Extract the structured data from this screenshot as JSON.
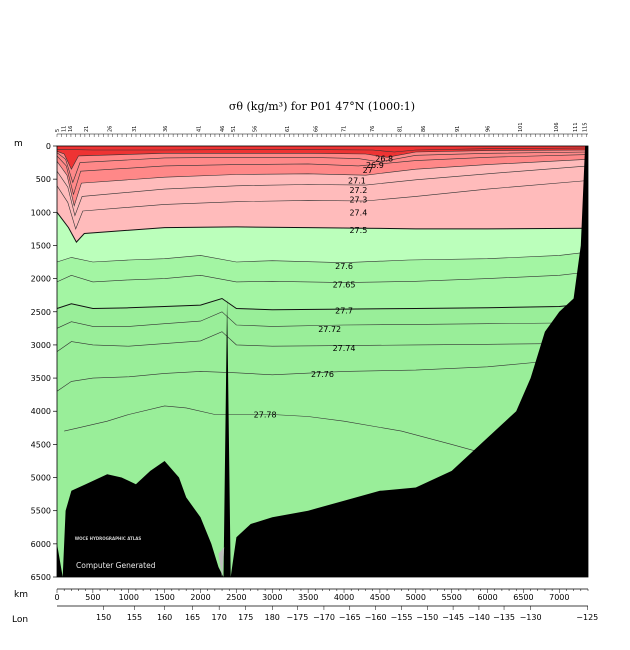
{
  "chart_data": {
    "type": "contour",
    "title": "σθ (kg/m³) for P01 47°N (1000:1)",
    "xlabel": "km",
    "ylabel": "m",
    "lon_label": "Lon",
    "xlim": [
      0,
      7400
    ],
    "ylim": [
      0,
      6500
    ],
    "x_ticks": [
      0,
      500,
      1000,
      1500,
      2000,
      2500,
      3000,
      3500,
      4000,
      4500,
      5000,
      5500,
      6000,
      6500,
      7000
    ],
    "y_ticks": [
      0,
      500,
      1000,
      1500,
      2000,
      2500,
      3000,
      3500,
      4000,
      4500,
      5000,
      5500,
      6000,
      6500
    ],
    "lon_ticks": [
      {
        "label": "150",
        "km": 650
      },
      {
        "label": "155",
        "km": 1080
      },
      {
        "label": "160",
        "km": 1500
      },
      {
        "label": "165",
        "km": 1890
      },
      {
        "label": "170",
        "km": 2260
      },
      {
        "label": "175",
        "km": 2630
      },
      {
        "label": "180",
        "km": 3000
      },
      {
        "label": "−175",
        "km": 3350
      },
      {
        "label": "−170",
        "km": 3720
      },
      {
        "label": "−165",
        "km": 4080
      },
      {
        "label": "−160",
        "km": 4440
      },
      {
        "label": "−155",
        "km": 4800
      },
      {
        "label": "−150",
        "km": 5160
      },
      {
        "label": "−145",
        "km": 5520
      },
      {
        "label": "−140",
        "km": 5880
      },
      {
        "label": "−135",
        "km": 6230
      },
      {
        "label": "−130",
        "km": 6600
      },
      {
        "label": "−125",
        "km": 7390
      }
    ],
    "stations": [
      {
        "label": "5",
        "km": 30
      },
      {
        "label": "11",
        "km": 120
      },
      {
        "label": "16",
        "km": 210
      },
      {
        "label": "21",
        "km": 430
      },
      {
        "label": "26",
        "km": 760
      },
      {
        "label": "31",
        "km": 1100
      },
      {
        "label": "36",
        "km": 1530
      },
      {
        "label": "41",
        "km": 2000
      },
      {
        "label": "46",
        "km": 2330
      },
      {
        "label": "51",
        "km": 2480
      },
      {
        "label": "56",
        "km": 2780
      },
      {
        "label": "61",
        "km": 3230
      },
      {
        "label": "66",
        "km": 3630
      },
      {
        "label": "71",
        "km": 4020
      },
      {
        "label": "76",
        "km": 4420
      },
      {
        "label": "81",
        "km": 4800
      },
      {
        "label": "86",
        "km": 5130
      },
      {
        "label": "91",
        "km": 5600
      },
      {
        "label": "96",
        "km": 6030
      },
      {
        "label": "101",
        "km": 6480
      },
      {
        "label": "106",
        "km": 6980
      },
      {
        "label": "111",
        "km": 7250
      },
      {
        "label": "115",
        "km": 7380
      }
    ],
    "contours": [
      {
        "level": "26.8",
        "label": "26.8",
        "points": [
          [
            0,
            50
          ],
          [
            500,
            60
          ],
          [
            1500,
            60
          ],
          [
            2500,
            55
          ],
          [
            3500,
            55
          ],
          [
            4400,
            60
          ],
          [
            4700,
            90
          ],
          [
            5000,
            60
          ],
          [
            6000,
            40
          ],
          [
            7400,
            30
          ]
        ]
      },
      {
        "level": "26.9",
        "label": "26.9",
        "points": [
          [
            0,
            80
          ],
          [
            100,
            120
          ],
          [
            200,
            350
          ],
          [
            300,
            150
          ],
          [
            1500,
            110
          ],
          [
            2500,
            110
          ],
          [
            3500,
            110
          ],
          [
            4300,
            120
          ],
          [
            4600,
            170
          ],
          [
            5000,
            90
          ],
          [
            6000,
            70
          ],
          [
            7400,
            60
          ]
        ]
      },
      {
        "level": "27.0",
        "label": "27",
        "points": [
          [
            0,
            100
          ],
          [
            120,
            200
          ],
          [
            220,
            550
          ],
          [
            320,
            250
          ],
          [
            1500,
            180
          ],
          [
            2500,
            170
          ],
          [
            3500,
            170
          ],
          [
            4200,
            190
          ],
          [
            4500,
            240
          ],
          [
            5000,
            140
          ],
          [
            6000,
            110
          ],
          [
            7400,
            90
          ]
        ]
      },
      {
        "level": "27.1",
        "label": "27.1",
        "points": [
          [
            0,
            150
          ],
          [
            130,
            300
          ],
          [
            230,
            730
          ],
          [
            330,
            380
          ],
          [
            1500,
            300
          ],
          [
            2500,
            280
          ],
          [
            3500,
            270
          ],
          [
            4200,
            300
          ],
          [
            5000,
            220
          ],
          [
            6000,
            170
          ],
          [
            7400,
            130
          ]
        ]
      },
      {
        "level": "27.2",
        "label": "27.2",
        "points": [
          [
            0,
            230
          ],
          [
            140,
            440
          ],
          [
            240,
            900
          ],
          [
            340,
            560
          ],
          [
            1500,
            470
          ],
          [
            2500,
            430
          ],
          [
            3500,
            420
          ],
          [
            4300,
            440
          ],
          [
            5000,
            350
          ],
          [
            6000,
            280
          ],
          [
            7400,
            200
          ]
        ]
      },
      {
        "level": "27.3",
        "label": "27.3",
        "points": [
          [
            0,
            380
          ],
          [
            150,
            620
          ],
          [
            250,
            1050
          ],
          [
            350,
            760
          ],
          [
            1500,
            650
          ],
          [
            2500,
            600
          ],
          [
            3500,
            580
          ],
          [
            4300,
            590
          ],
          [
            5000,
            510
          ],
          [
            6000,
            420
          ],
          [
            7400,
            300
          ]
        ]
      },
      {
        "level": "27.4",
        "label": "27.4",
        "points": [
          [
            0,
            600
          ],
          [
            150,
            850
          ],
          [
            260,
            1250
          ],
          [
            360,
            980
          ],
          [
            1500,
            880
          ],
          [
            2500,
            840
          ],
          [
            3500,
            820
          ],
          [
            4300,
            830
          ],
          [
            5000,
            760
          ],
          [
            6000,
            650
          ],
          [
            7400,
            520
          ]
        ]
      },
      {
        "level": "27.5",
        "label": "27.5",
        "points": [
          [
            0,
            1000
          ],
          [
            160,
            1230
          ],
          [
            270,
            1450
          ],
          [
            380,
            1320
          ],
          [
            1500,
            1230
          ],
          [
            2500,
            1220
          ],
          [
            3500,
            1230
          ],
          [
            4300,
            1240
          ],
          [
            5000,
            1250
          ],
          [
            6000,
            1250
          ],
          [
            7400,
            1240
          ]
        ]
      },
      {
        "level": "27.6",
        "label": "27.6",
        "points": [
          [
            0,
            1750
          ],
          [
            200,
            1680
          ],
          [
            500,
            1750
          ],
          [
            1000,
            1720
          ],
          [
            1500,
            1700
          ],
          [
            2000,
            1650
          ],
          [
            2500,
            1750
          ],
          [
            3000,
            1730
          ],
          [
            4000,
            1760
          ],
          [
            4900,
            1720
          ],
          [
            6000,
            1700
          ],
          [
            7000,
            1650
          ],
          [
            7400,
            1600
          ]
        ]
      },
      {
        "level": "27.65",
        "label": "27.65",
        "points": [
          [
            0,
            2050
          ],
          [
            200,
            1950
          ],
          [
            500,
            2050
          ],
          [
            1000,
            2020
          ],
          [
            1500,
            2000
          ],
          [
            2000,
            1950
          ],
          [
            2500,
            2050
          ],
          [
            3000,
            2040
          ],
          [
            4000,
            2060
          ],
          [
            5000,
            2040
          ],
          [
            6000,
            2000
          ],
          [
            7000,
            1950
          ],
          [
            7400,
            1900
          ]
        ]
      },
      {
        "level": "27.7",
        "label": "27.7",
        "points": [
          [
            0,
            2450
          ],
          [
            200,
            2380
          ],
          [
            500,
            2450
          ],
          [
            1000,
            2440
          ],
          [
            1500,
            2420
          ],
          [
            2000,
            2400
          ],
          [
            2300,
            2300
          ],
          [
            2500,
            2450
          ],
          [
            3000,
            2470
          ],
          [
            4000,
            2460
          ],
          [
            5000,
            2450
          ],
          [
            6000,
            2440
          ],
          [
            7000,
            2420
          ],
          [
            7400,
            2380
          ]
        ]
      },
      {
        "level": "27.72",
        "label": "27.72",
        "points": [
          [
            0,
            2750
          ],
          [
            200,
            2650
          ],
          [
            500,
            2720
          ],
          [
            1000,
            2720
          ],
          [
            1500,
            2680
          ],
          [
            2000,
            2640
          ],
          [
            2300,
            2500
          ],
          [
            2500,
            2700
          ],
          [
            3000,
            2720
          ],
          [
            4000,
            2700
          ],
          [
            5000,
            2690
          ],
          [
            6000,
            2680
          ],
          [
            7000,
            2670
          ],
          [
            7400,
            2660
          ]
        ]
      },
      {
        "level": "27.74",
        "label": "27.74",
        "points": [
          [
            0,
            3100
          ],
          [
            200,
            2950
          ],
          [
            500,
            3000
          ],
          [
            1000,
            3020
          ],
          [
            1500,
            2980
          ],
          [
            2000,
            2940
          ],
          [
            2300,
            2800
          ],
          [
            2500,
            3000
          ],
          [
            3000,
            3020
          ],
          [
            4000,
            3010
          ],
          [
            5000,
            3000
          ],
          [
            6000,
            2990
          ],
          [
            7000,
            2980
          ]
        ]
      },
      {
        "level": "27.76",
        "label": "27.76",
        "points": [
          [
            0,
            3700
          ],
          [
            200,
            3550
          ],
          [
            500,
            3500
          ],
          [
            1000,
            3480
          ],
          [
            1500,
            3430
          ],
          [
            2000,
            3400
          ],
          [
            2500,
            3420
          ],
          [
            3000,
            3450
          ],
          [
            4000,
            3400
          ],
          [
            5000,
            3380
          ],
          [
            6000,
            3330
          ],
          [
            6800,
            3250
          ]
        ]
      },
      {
        "level": "27.78",
        "label": "27.78",
        "points": [
          [
            100,
            4300
          ],
          [
            300,
            4250
          ],
          [
            700,
            4150
          ],
          [
            1000,
            4050
          ],
          [
            1500,
            3920
          ],
          [
            1800,
            3950
          ],
          [
            2200,
            4050
          ],
          [
            2600,
            4050
          ],
          [
            3000,
            4050
          ],
          [
            3500,
            4080
          ],
          [
            4000,
            4150
          ],
          [
            4800,
            4300
          ],
          [
            5500,
            4500
          ],
          [
            6000,
            4650
          ]
        ]
      }
    ],
    "fill_regions": [
      {
        "name": "surface-layer",
        "range": "< 26.9",
        "color": "#ee3333"
      },
      {
        "name": "27.0-27.2",
        "range": "27.0–27.2",
        "color": "#ff8888"
      },
      {
        "name": "27.3-27.5",
        "range": "27.3–27.5",
        "color": "#ffbbbb"
      },
      {
        "name": "27.5-27.6",
        "range": "27.5–27.6",
        "color": "#bbffbb"
      },
      {
        "name": "27.6-27.7",
        "range": "27.6–27.7",
        "color": "#a3f5a3"
      },
      {
        "name": "27.7-bottom",
        "range": "> 27.7",
        "color": "#99ee99"
      }
    ],
    "seafloor": [
      [
        0,
        6000
      ],
      [
        80,
        6500
      ],
      [
        120,
        5500
      ],
      [
        200,
        5200
      ],
      [
        400,
        5100
      ],
      [
        700,
        4950
      ],
      [
        900,
        5000
      ],
      [
        1100,
        5100
      ],
      [
        1300,
        4900
      ],
      [
        1500,
        4750
      ],
      [
        1700,
        5000
      ],
      [
        1800,
        5300
      ],
      [
        2000,
        5600
      ],
      [
        2150,
        6000
      ],
      [
        2250,
        6350
      ],
      [
        2320,
        6500
      ],
      [
        2370,
        2300
      ],
      [
        2420,
        6500
      ],
      [
        2500,
        5900
      ],
      [
        2700,
        5700
      ],
      [
        3000,
        5600
      ],
      [
        3500,
        5500
      ],
      [
        4000,
        5350
      ],
      [
        4500,
        5200
      ],
      [
        5000,
        5150
      ],
      [
        5500,
        4900
      ],
      [
        6000,
        4400
      ],
      [
        6400,
        4000
      ],
      [
        6600,
        3500
      ],
      [
        6800,
        2800
      ],
      [
        7000,
        2500
      ],
      [
        7200,
        2300
      ],
      [
        7300,
        1500
      ],
      [
        7360,
        0
      ],
      [
        7400,
        0
      ]
    ],
    "gridlines": false,
    "watermark": "WOCE HYDROGRAPHIC ATLAS",
    "footer": "Computer Generated",
    "colors": {
      "background": "#ffffff",
      "seafloor": "#000000",
      "contour_line": "#333333",
      "contour_bold": "#111111"
    }
  }
}
